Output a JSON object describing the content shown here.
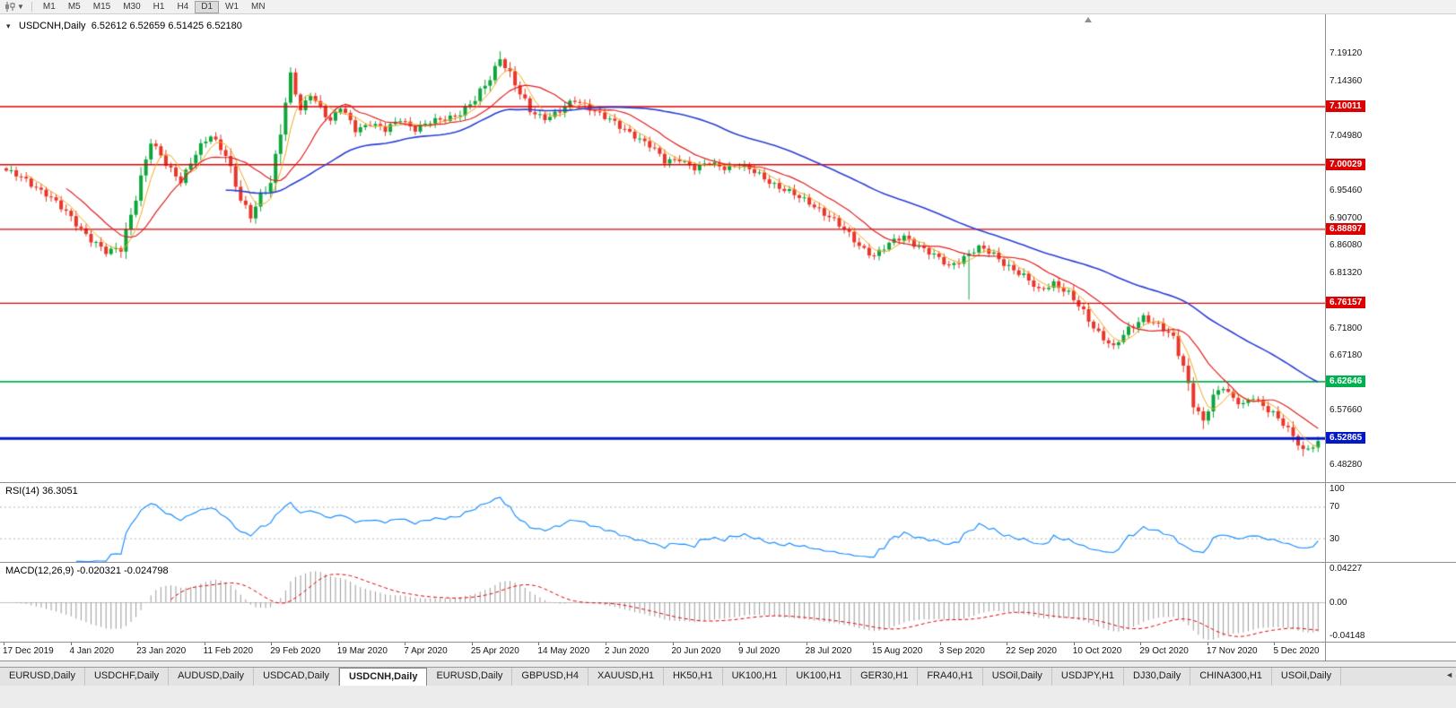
{
  "toolbar": {
    "timeframes": [
      "M1",
      "M5",
      "M15",
      "M30",
      "H1",
      "H4",
      "D1",
      "W1",
      "MN"
    ],
    "active": "D1"
  },
  "chart": {
    "title": "USDCNH,Daily",
    "ohlc_text": "6.52612 6.52659 6.51425 6.52180",
    "price_axis": {
      "ticks": [
        {
          "label": "7.19120",
          "value": 7.1912
        },
        {
          "label": "7.14360",
          "value": 7.1436
        },
        {
          "label": "7.04980",
          "value": 7.0498
        },
        {
          "label": "6.95460",
          "value": 6.9546
        },
        {
          "label": "6.90700",
          "value": 6.907
        },
        {
          "label": "6.86080",
          "value": 6.8608
        },
        {
          "label": "6.81320",
          "value": 6.8132
        },
        {
          "label": "6.71800",
          "value": 6.718
        },
        {
          "label": "6.67180",
          "value": 6.6718
        },
        {
          "label": "6.57660",
          "value": 6.5766
        },
        {
          "label": "6.48280",
          "value": 6.4828
        }
      ]
    },
    "hlines": [
      {
        "label": "7.10011",
        "value": 7.10011,
        "color": "#dd0000",
        "lw": 1.4
      },
      {
        "label": "7.00029",
        "value": 7.00029,
        "color": "#dd0000",
        "lw": 1.4
      },
      {
        "label": "6.88897",
        "value": 6.88897,
        "color": "#dd0000",
        "lw": 1.4
      },
      {
        "label": "6.76157",
        "value": 6.76157,
        "color": "#dd0000",
        "lw": 1.4
      },
      {
        "label": "6.62646",
        "value": 6.62646,
        "color": "#00b050",
        "lw": 1.8
      },
      {
        "label": "6.52865",
        "value": 6.52865,
        "color": "#0018c8",
        "lw": 3
      }
    ],
    "dates": [
      "17 Dec 2019",
      "4 Jan 2020",
      "23 Jan 2020",
      "11 Feb 2020",
      "29 Feb 2020",
      "19 Mar 2020",
      "7 Apr 2020",
      "25 Apr 2020",
      "14 May 2020",
      "2 Jun 2020",
      "20 Jun 2020",
      "9 Jul 2020",
      "28 Jul 2020",
      "15 Aug 2020",
      "3 Sep 2020",
      "22 Sep 2020",
      "10 Oct 2020",
      "29 Oct 2020",
      "17 Nov 2020",
      "5 Dec 2020"
    ],
    "colors": {
      "up": "#0ea53c",
      "down": "#e8362a",
      "ma_fast": "#f2a71b",
      "ma_mid": "#e02020",
      "ma_slow": "#2b3fd6"
    }
  },
  "rsi": {
    "label": "RSI(14)",
    "value": "36.3051",
    "color": "#1e90ff",
    "levels": [
      70,
      30
    ],
    "axis": [
      {
        "label": "100",
        "value": 100
      },
      {
        "label": "70",
        "value": 70
      },
      {
        "label": "30",
        "value": 30
      }
    ]
  },
  "macd": {
    "label": "MACD(12,26,9)",
    "value_text": "-0.020321 -0.024798",
    "hist_color": "#9a9a9a",
    "signal_color": "#e00000",
    "axis": [
      {
        "label": "0.04227",
        "value": 0.04227
      },
      {
        "label": "0.00",
        "value": 0
      },
      {
        "label": "-0.04148",
        "value": -0.04148
      }
    ]
  },
  "tabs": {
    "active_index": 4,
    "items": [
      {
        "label": "EURUSD,Daily"
      },
      {
        "label": "USDCHF,Daily"
      },
      {
        "label": "AUDUSD,Daily"
      },
      {
        "label": "USDCAD,Daily"
      },
      {
        "label": "USDCNH,Daily"
      },
      {
        "label": "EURUSD,Daily"
      },
      {
        "label": "GBPUSD,H4"
      },
      {
        "label": "XAUUSD,H1"
      },
      {
        "label": "HK50,H1"
      },
      {
        "label": "UK100,H1"
      },
      {
        "label": "UK100,H1"
      },
      {
        "label": "GER30,H1"
      },
      {
        "label": "FRA40,H1"
      },
      {
        "label": "USOil,Daily"
      },
      {
        "label": "USDJPY,H1"
      },
      {
        "label": "DJ30,Daily"
      },
      {
        "label": "CHINA300,H1"
      },
      {
        "label": "USOil,Daily"
      }
    ]
  },
  "chart_data": {
    "type": "candlestick",
    "symbol": "USDCNH",
    "timeframe": "Daily",
    "title": "USDCNH,Daily",
    "ohlc_current": {
      "open": 6.52612,
      "high": 6.52659,
      "low": 6.51425,
      "close": 6.5218
    },
    "price_line": 6.52865,
    "resistance_levels": [
      7.10011,
      7.00029,
      6.88897,
      6.76157
    ],
    "support_level_green": 6.62646,
    "y_range": [
      6.4828,
      7.1912
    ],
    "x_range": [
      "17 Dec 2019",
      "mid Dec 2020"
    ],
    "candles_count": 264,
    "close_anchors": [
      [
        0,
        6.99
      ],
      [
        4,
        6.972
      ],
      [
        8,
        6.952
      ],
      [
        12,
        6.916
      ],
      [
        16,
        6.882
      ],
      [
        20,
        6.848
      ],
      [
        23,
        6.856
      ],
      [
        26,
        6.948
      ],
      [
        29,
        7.038
      ],
      [
        32,
        7.002
      ],
      [
        35,
        6.974
      ],
      [
        38,
        7.018
      ],
      [
        41,
        7.05
      ],
      [
        44,
        7.022
      ],
      [
        47,
        6.938
      ],
      [
        49,
        6.908
      ],
      [
        51,
        6.948
      ],
      [
        53,
        6.974
      ],
      [
        55,
        7.058
      ],
      [
        57,
        7.152
      ],
      [
        59,
        7.092
      ],
      [
        61,
        7.124
      ],
      [
        63,
        7.1
      ],
      [
        65,
        7.074
      ],
      [
        67,
        7.098
      ],
      [
        70,
        7.062
      ],
      [
        73,
        7.072
      ],
      [
        76,
        7.058
      ],
      [
        79,
        7.08
      ],
      [
        82,
        7.062
      ],
      [
        85,
        7.072
      ],
      [
        88,
        7.08
      ],
      [
        91,
        7.09
      ],
      [
        94,
        7.11
      ],
      [
        97,
        7.15
      ],
      [
        99,
        7.186
      ],
      [
        101,
        7.156
      ],
      [
        103,
        7.12
      ],
      [
        105,
        7.092
      ],
      [
        108,
        7.082
      ],
      [
        111,
        7.092
      ],
      [
        114,
        7.11
      ],
      [
        117,
        7.1
      ],
      [
        120,
        7.082
      ],
      [
        123,
        7.064
      ],
      [
        126,
        7.052
      ],
      [
        129,
        7.034
      ],
      [
        132,
        7.004
      ],
      [
        135,
        7.012
      ],
      [
        138,
        6.994
      ],
      [
        141,
        7.002
      ],
      [
        144,
        6.996
      ],
      [
        147,
        7.0
      ],
      [
        150,
        6.986
      ],
      [
        153,
        6.972
      ],
      [
        156,
        6.958
      ],
      [
        159,
        6.942
      ],
      [
        162,
        6.93
      ],
      [
        165,
        6.912
      ],
      [
        168,
        6.886
      ],
      [
        171,
        6.862
      ],
      [
        174,
        6.844
      ],
      [
        177,
        6.862
      ],
      [
        180,
        6.878
      ],
      [
        183,
        6.86
      ],
      [
        186,
        6.842
      ],
      [
        189,
        6.826
      ],
      [
        192,
        6.842
      ],
      [
        195,
        6.856
      ],
      [
        198,
        6.846
      ],
      [
        201,
        6.826
      ],
      [
        204,
        6.806
      ],
      [
        207,
        6.784
      ],
      [
        210,
        6.798
      ],
      [
        213,
        6.776
      ],
      [
        216,
        6.746
      ],
      [
        219,
        6.712
      ],
      [
        222,
        6.684
      ],
      [
        225,
        6.716
      ],
      [
        228,
        6.74
      ],
      [
        231,
        6.722
      ],
      [
        234,
        6.7
      ],
      [
        236,
        6.656
      ],
      [
        238,
        6.592
      ],
      [
        240,
        6.556
      ],
      [
        242,
        6.598
      ],
      [
        244,
        6.618
      ],
      [
        246,
        6.6
      ],
      [
        248,
        6.588
      ],
      [
        250,
        6.598
      ],
      [
        252,
        6.582
      ],
      [
        254,
        6.574
      ],
      [
        256,
        6.558
      ],
      [
        258,
        6.532
      ],
      [
        260,
        6.504
      ],
      [
        262,
        6.516
      ],
      [
        263,
        6.522
      ]
    ],
    "long_wicks": [
      {
        "i": 57,
        "high": 7.168
      },
      {
        "i": 99,
        "high": 7.1955
      },
      {
        "i": 193,
        "low": 6.768
      },
      {
        "i": 240,
        "low": 6.545
      },
      {
        "i": 260,
        "low": 6.498
      }
    ],
    "indicators": {
      "ma_periods": [
        5,
        13,
        45
      ],
      "rsi": {
        "period": 14,
        "last": 36.3051,
        "levels": [
          70,
          30
        ]
      },
      "macd": {
        "fast": 12,
        "slow": 26,
        "signal": 9,
        "last": -0.020321,
        "signal_last": -0.024798
      }
    }
  }
}
